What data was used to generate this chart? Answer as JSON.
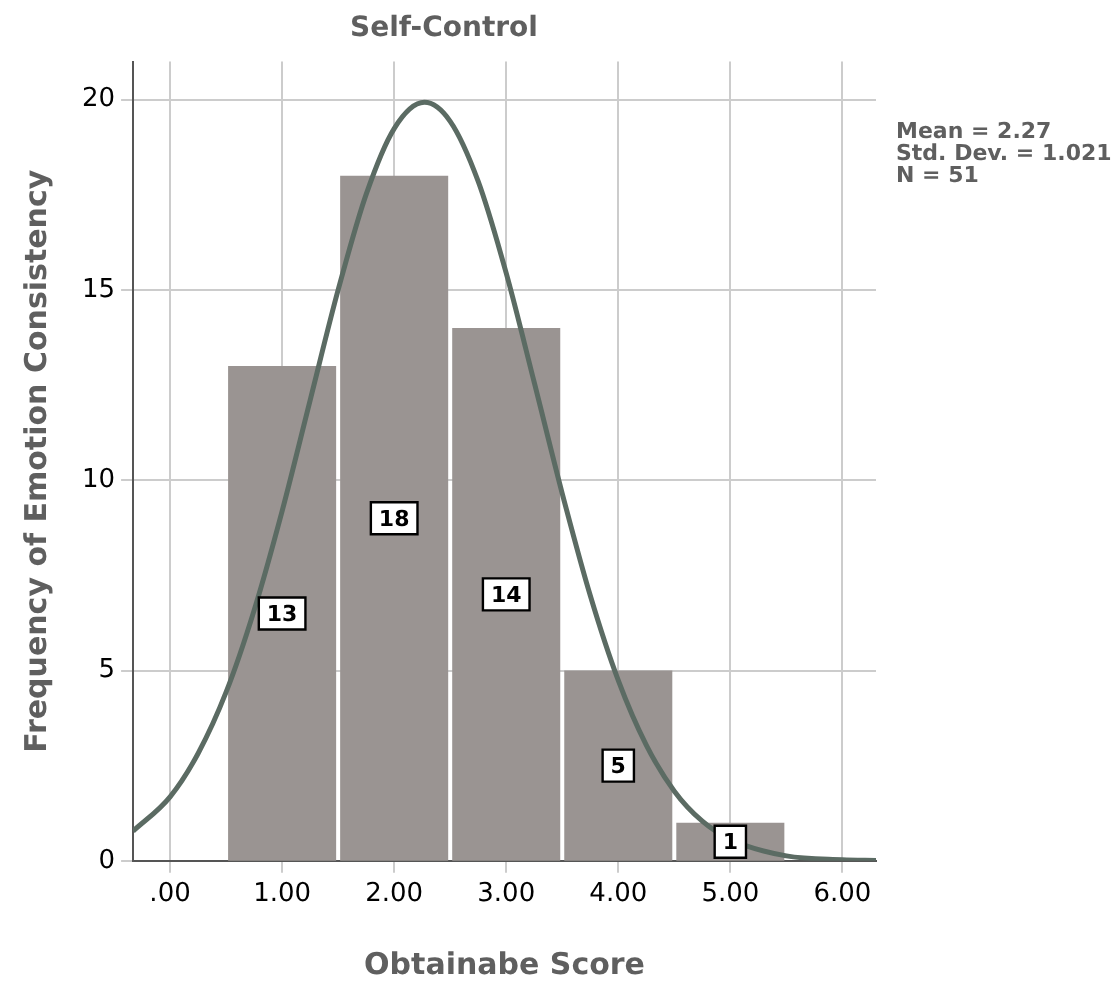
{
  "chart_data": {
    "type": "histogram",
    "title": "Self-Control",
    "xlabel": "Obtainabe Score",
    "ylabel": "Frequency of Emotion Consistency",
    "bins": [
      0.5,
      1.5,
      2.5,
      3.5,
      4.5,
      5.5
    ],
    "values": [
      13,
      18,
      14,
      5,
      1
    ],
    "color": "#9a9492",
    "value_labels": [
      "13",
      "18",
      "14",
      "5",
      "1"
    ],
    "series": [
      {
        "type": "line",
        "color": "#5b6b63",
        "x": [
          -0.33,
          0,
          0.25,
          0.5,
          0.75,
          1,
          1.25,
          1.5,
          1.75,
          2,
          2.27,
          2.5,
          2.75,
          3,
          3.25,
          3.5,
          3.75,
          4,
          4.25,
          4.5,
          4.75,
          5,
          5.5,
          6,
          6.3
        ],
        "values": [
          0.78,
          1.68,
          2.82,
          4.43,
          6.58,
          9.19,
          12.1,
          15,
          17.51,
          19.24,
          19.93,
          19.43,
          17.85,
          15.44,
          12.57,
          9.65,
          6.97,
          4.74,
          3.04,
          1.83,
          1.04,
          0.56,
          0.13,
          0.03,
          0.01
        ]
      }
    ],
    "annotations": [
      "Mean = 2.27\nStd. Dev. = 1.021\nN = 51"
    ],
    "xlim": [
      -0.33,
      6.3
    ],
    "xticks": [
      {
        "value": 0,
        "label": ".00"
      },
      {
        "value": 1,
        "label": "1.00"
      },
      {
        "value": 2,
        "label": "2.00"
      },
      {
        "value": 3,
        "label": "3.00"
      },
      {
        "value": 4,
        "label": "4.00"
      },
      {
        "value": 5,
        "label": "5.00"
      },
      {
        "value": 6,
        "label": "6.00"
      }
    ],
    "ylim": [
      0,
      21
    ],
    "yticks": [
      0,
      5,
      10,
      15,
      20
    ],
    "grid": true
  }
}
